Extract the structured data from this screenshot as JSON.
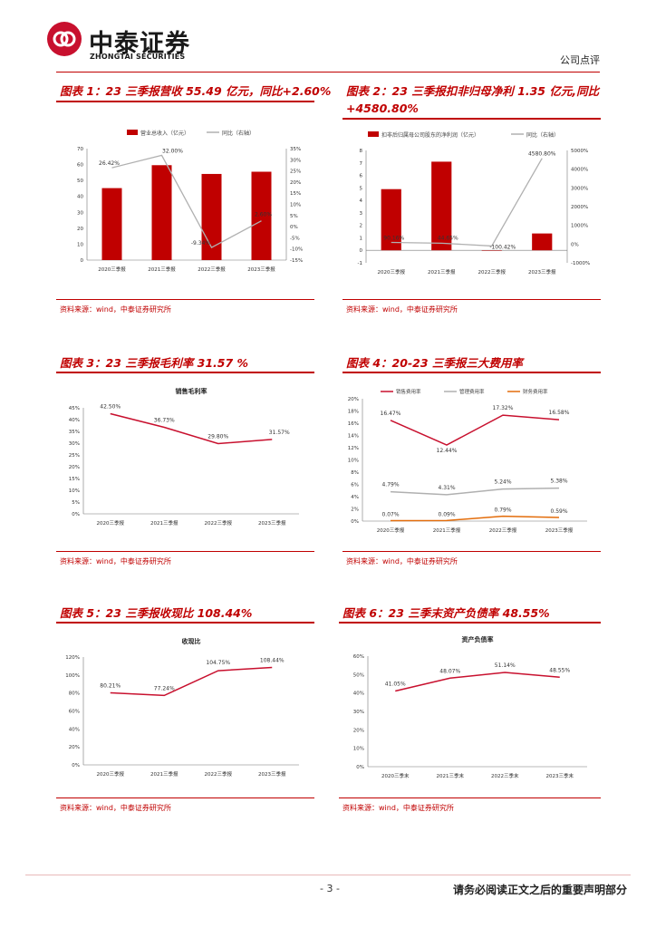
{
  "header": {
    "logo_cn": "中泰证券",
    "logo_en": "ZHONGTAI SECURITIES",
    "doc_type": "公司点评"
  },
  "figures": {
    "fig1": {
      "title": "图表 1：23 三季报营收 55.49 亿元，同比+2.60%",
      "source": "资料来源：wind，中泰证券研究所"
    },
    "fig2": {
      "title_line1": "图表 2：23 三季报扣非归母净利 1.35 亿元,同比",
      "title_line2": "+4580.80%",
      "source": "资料来源：wind，中泰证券研究所"
    },
    "fig3": {
      "title": "图表 3：23 三季报毛利率 31.57 %",
      "source": "资料来源：wind，中泰证券研究所"
    },
    "fig4": {
      "title": "图表 4：20-23 三季报三大费用率",
      "source": "资料来源：wind，中泰证券研究所"
    },
    "fig5": {
      "title": "图表 5：23 三季报收现比 108.44%",
      "source": "资料来源：wind，中泰证券研究所"
    },
    "fig6": {
      "title": "图表 6：23 三季末资产负债率 48.55%",
      "source": "资料来源：wind，中泰证券研究所"
    }
  },
  "chart_data": [
    {
      "id": "c1",
      "type": "bar+line",
      "categories": [
        "2020三季报",
        "2021三季报",
        "2022三季报",
        "2023三季报"
      ],
      "series": [
        {
          "name": "营业总收入（亿元）",
          "type": "bar",
          "axis": "left",
          "values": [
            45.2,
            59.6,
            54.1,
            55.49
          ],
          "color": "#c00000"
        },
        {
          "name": "同比（右轴）",
          "type": "line",
          "axis": "right",
          "values": [
            26.42,
            32.0,
            -9.34,
            2.6
          ],
          "labels": [
            "26.42%",
            "32.00%",
            "-9.34%",
            "2.60%"
          ],
          "color": "#b0b0b0"
        }
      ],
      "left_axis": {
        "min": 0,
        "max": 70,
        "step": 10,
        "ticks": [
          "0",
          "10",
          "20",
          "30",
          "40",
          "50",
          "60",
          "70"
        ]
      },
      "right_axis": {
        "min": -15,
        "max": 35,
        "step": 5,
        "ticks": [
          "-15%",
          "-10%",
          "-5%",
          "0%",
          "5%",
          "10%",
          "15%",
          "20%",
          "25%",
          "30%",
          "35%"
        ]
      }
    },
    {
      "id": "c2",
      "type": "bar+line",
      "categories": [
        "2020三季报",
        "2021三季报",
        "2022三季报",
        "2023三季报"
      ],
      "series": [
        {
          "name": "扣非后归属母公司股东的净利润（亿元）",
          "type": "bar",
          "axis": "left",
          "values": [
            4.9,
            7.1,
            -0.03,
            1.35
          ],
          "color": "#c00000"
        },
        {
          "name": "同比（右轴）",
          "type": "line",
          "axis": "right",
          "values": [
            90.16,
            44.65,
            -100.42,
            4580.8
          ],
          "labels": [
            "90.16%",
            "44.65%",
            "-100.42%",
            "4580.80%"
          ],
          "color": "#b0b0b0"
        }
      ],
      "left_axis": {
        "min": -1,
        "max": 8,
        "step": 1,
        "ticks": [
          "-1",
          "0",
          "1",
          "2",
          "3",
          "4",
          "5",
          "6",
          "7",
          "8"
        ]
      },
      "right_axis": {
        "min": -1000,
        "max": 5000,
        "step": 1000,
        "ticks": [
          "-1000%",
          "0%",
          "1000%",
          "2000%",
          "3000%",
          "4000%",
          "5000%"
        ]
      }
    },
    {
      "id": "c3",
      "type": "line",
      "title": "销售毛利率",
      "categories": [
        "2020三季报",
        "2021三季报",
        "2022三季报",
        "2023三季报"
      ],
      "series": [
        {
          "name": "销售毛利率",
          "values": [
            42.5,
            36.73,
            29.8,
            31.57
          ],
          "labels": [
            "42.50%",
            "36.73%",
            "29.80%",
            "31.57%"
          ],
          "color": "#c8102e"
        }
      ],
      "y_axis": {
        "min": 0,
        "max": 45,
        "step": 5,
        "ticks": [
          "0%",
          "5%",
          "10%",
          "15%",
          "20%",
          "25%",
          "30%",
          "35%",
          "40%",
          "45%"
        ]
      }
    },
    {
      "id": "c4",
      "type": "line",
      "categories": [
        "2020三季报",
        "2021三季报",
        "2022三季报",
        "2023三季报"
      ],
      "series": [
        {
          "name": "销售费用率",
          "values": [
            16.47,
            12.44,
            17.32,
            16.58
          ],
          "labels": [
            "16.47%",
            "12.44%",
            "17.32%",
            "16.58%"
          ],
          "color": "#c8102e"
        },
        {
          "name": "管理费用率",
          "values": [
            4.79,
            4.31,
            5.24,
            5.38
          ],
          "labels": [
            "4.79%",
            "4.31%",
            "5.24%",
            "5.38%"
          ],
          "color": "#b0b0b0"
        },
        {
          "name": "财务费用率",
          "values": [
            0.07,
            0.09,
            0.79,
            0.59
          ],
          "labels": [
            "0.07%",
            "0.09%",
            "0.79%",
            "0.59%"
          ],
          "color": "#e36c0a"
        }
      ],
      "y_axis": {
        "min": 0,
        "max": 20,
        "step": 2,
        "ticks": [
          "0%",
          "2%",
          "4%",
          "6%",
          "8%",
          "10%",
          "12%",
          "14%",
          "16%",
          "18%",
          "20%"
        ]
      }
    },
    {
      "id": "c5",
      "type": "line",
      "title": "收现比",
      "categories": [
        "2020三季报",
        "2021三季报",
        "2022三季报",
        "2023三季报"
      ],
      "series": [
        {
          "name": "收现比",
          "values": [
            80.21,
            77.24,
            104.75,
            108.44
          ],
          "labels": [
            "80.21%",
            "77.24%",
            "104.75%",
            "108.44%"
          ],
          "color": "#c8102e"
        }
      ],
      "y_axis": {
        "min": 0,
        "max": 120,
        "step": 20,
        "ticks": [
          "0%",
          "20%",
          "40%",
          "60%",
          "80%",
          "100%",
          "120%"
        ]
      }
    },
    {
      "id": "c6",
      "type": "line",
      "title": "资产负债率",
      "categories": [
        "2020三季末",
        "2021三季末",
        "2022三季末",
        "2023三季末"
      ],
      "series": [
        {
          "name": "资产负债率",
          "values": [
            41.05,
            48.07,
            51.14,
            48.55
          ],
          "labels": [
            "41.05%",
            "48.07%",
            "51.14%",
            "48.55%"
          ],
          "color": "#c8102e"
        }
      ],
      "y_axis": {
        "min": 0,
        "max": 60,
        "step": 10,
        "ticks": [
          "0%",
          "10%",
          "20%",
          "30%",
          "40%",
          "50%",
          "60%"
        ]
      }
    }
  ],
  "footer": {
    "page": "- 3 -",
    "disclaimer": "请务必阅读正文之后的重要声明部分"
  }
}
